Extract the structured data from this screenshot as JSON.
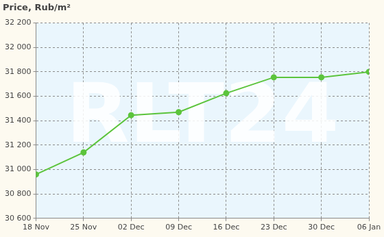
{
  "chart_data": {
    "type": "line",
    "title": "Price, Rub/m²",
    "annotations": [
      "RLT24"
    ],
    "categories": [
      "18 Nov",
      "25 Nov",
      "02 Dec",
      "09 Dec",
      "16 Dec",
      "23 Dec",
      "30 Dec",
      "06 Jan"
    ],
    "values": [
      30960,
      31140,
      31445,
      31470,
      31625,
      31755,
      31755,
      31800
    ],
    "color": "#5cc43c",
    "marker": "circle",
    "line_style": "solid",
    "ylim": [
      30600,
      32200
    ],
    "yticks": [
      {
        "value": 30600,
        "label": "30 600"
      },
      {
        "value": 30800,
        "label": "30 800"
      },
      {
        "value": 31000,
        "label": "31 000"
      },
      {
        "value": 31200,
        "label": "31 200"
      },
      {
        "value": 31400,
        "label": "31 400"
      },
      {
        "value": 31600,
        "label": "31 600"
      },
      {
        "value": 31800,
        "label": "31 800"
      },
      {
        "value": 32000,
        "label": "32 000"
      },
      {
        "value": 32200,
        "label": "32 200"
      }
    ],
    "grid": true
  }
}
